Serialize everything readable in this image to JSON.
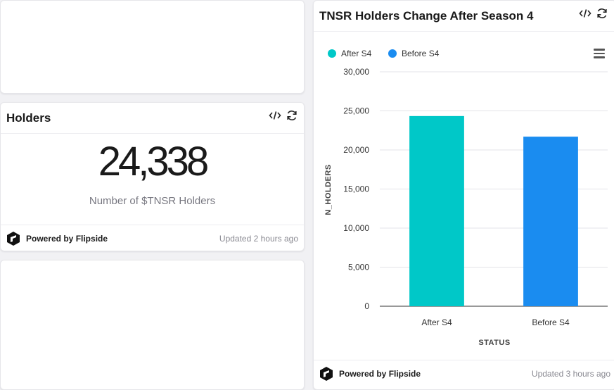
{
  "holders_card": {
    "title": "Holders",
    "value": "24,338",
    "caption": "Number of $TNSR Holders",
    "footer": {
      "brand": "Powered by Flipside",
      "updated": "Updated 2 hours ago"
    }
  },
  "chart_card": {
    "title": "TNSR Holders Change After Season 4",
    "footer": {
      "brand": "Powered by Flipside",
      "updated": "Updated 3 hours ago"
    }
  },
  "icons": {
    "embed": "code-icon",
    "refresh": "refresh-icon",
    "menu": "hamburger-menu-icon",
    "logo": "flipside-logo-icon"
  },
  "colors": {
    "after_s4": "#00c8c8",
    "before_s4": "#1a8cf0"
  },
  "chart_data": {
    "type": "bar",
    "categories": [
      "After S4",
      "Before S4"
    ],
    "values": [
      24338,
      21700
    ],
    "colors": [
      "#00c8c8",
      "#1a8cf0"
    ],
    "legend": [
      "After S4",
      "Before S4"
    ],
    "legend_position": "top-left",
    "xlabel": "STATUS",
    "ylabel": "N_HOLDERS",
    "ylim": [
      0,
      30000
    ],
    "yticks": [
      0,
      5000,
      10000,
      15000,
      20000,
      25000,
      30000
    ],
    "ytick_labels": [
      "0",
      "5,000",
      "10,000",
      "15,000",
      "20,000",
      "25,000",
      "30,000"
    ],
    "grid": true
  }
}
